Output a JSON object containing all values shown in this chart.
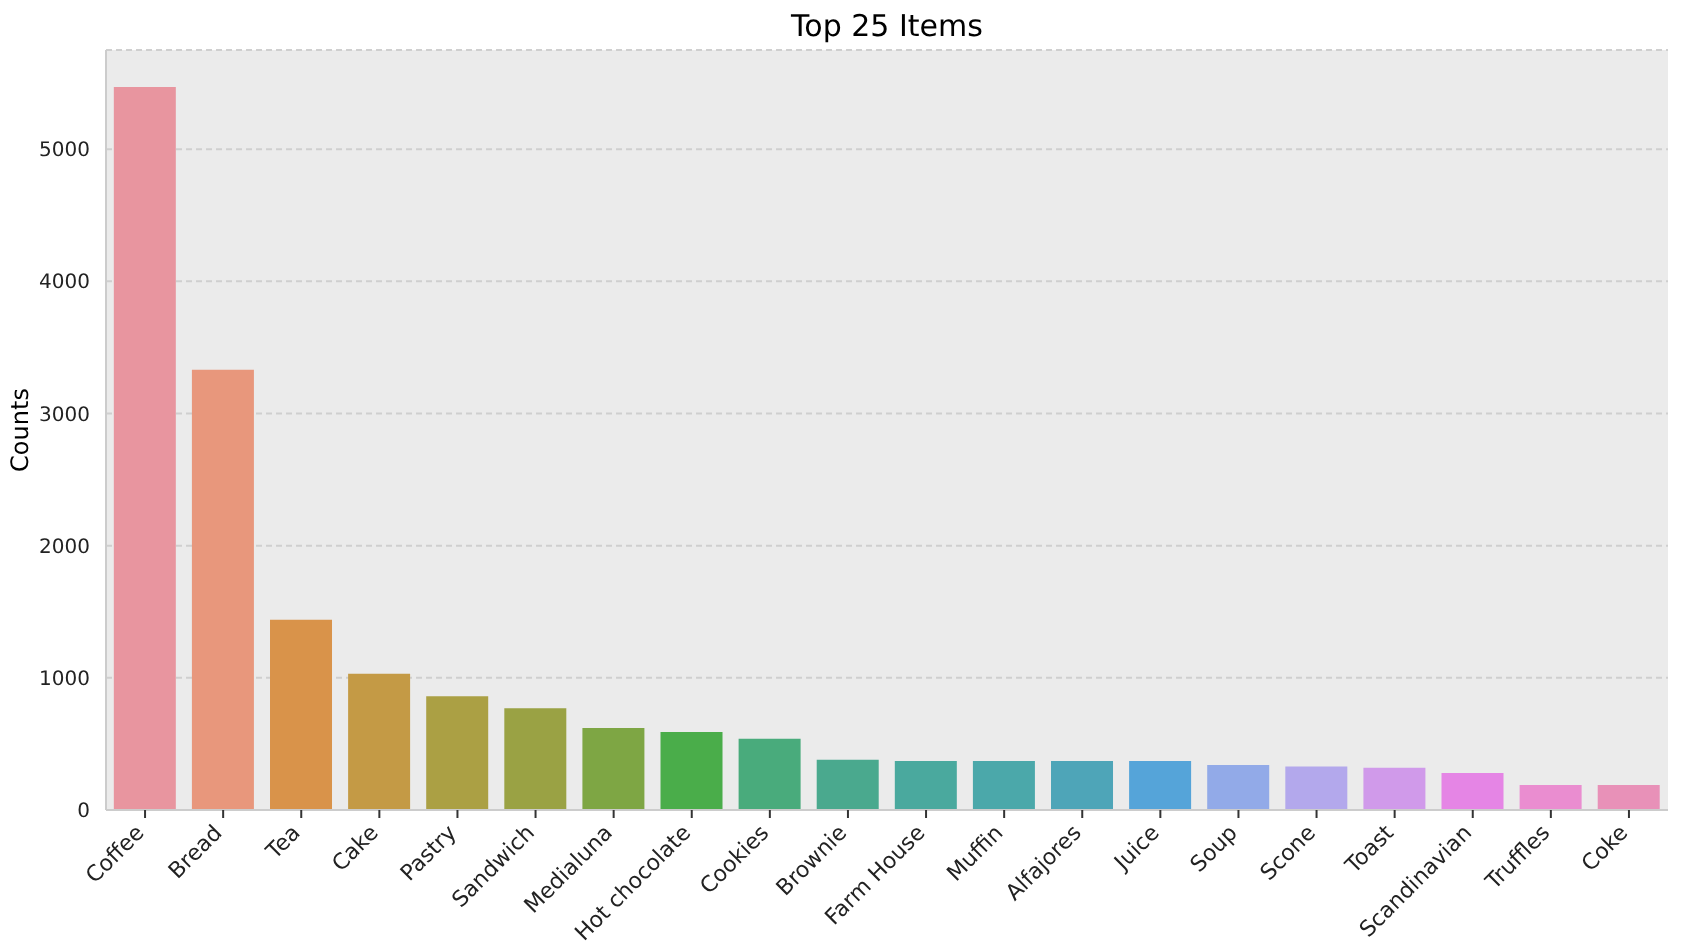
{
  "chart_data": {
    "type": "bar",
    "title": "Top 25 Items",
    "ylabel": "Counts",
    "categories": [
      "Coffee",
      "Bread",
      "Tea",
      "Cake",
      "Pastry",
      "Sandwich",
      "Medialuna",
      "Hot chocolate",
      "Cookies",
      "Brownie",
      "Farm House",
      "Muffin",
      "Alfajores",
      "Juice",
      "Soup",
      "Scone",
      "Toast",
      "Scandinavian",
      "Truffles",
      "Coke"
    ],
    "values": [
      5470,
      3330,
      1440,
      1030,
      860,
      770,
      620,
      590,
      540,
      380,
      370,
      370,
      370,
      370,
      340,
      330,
      320,
      280,
      190,
      190
    ],
    "colors": [
      "#e8959f",
      "#e8977c",
      "#d9934a",
      "#c49a45",
      "#aba044",
      "#9aa244",
      "#7ea644",
      "#4aad4a",
      "#49ab7c",
      "#4aa98e",
      "#4aa99e",
      "#4ba8aa",
      "#4ea5b8",
      "#55a4d9",
      "#92aae8",
      "#b3a8ec",
      "#d09aea",
      "#e585e5",
      "#ea8dd0",
      "#e891b8"
    ],
    "ylim": [
      0,
      5750
    ],
    "yticks": [
      0,
      1000,
      2000,
      3000,
      4000,
      5000
    ],
    "grid": "y"
  }
}
